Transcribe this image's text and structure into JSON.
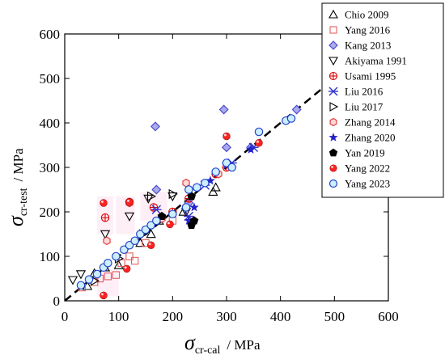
{
  "chart_data": {
    "type": "scatter",
    "xlabel": {
      "symbol": "σ",
      "subscript": "cr-cal",
      "unit": "/ MPa"
    },
    "ylabel": {
      "symbol": "σ",
      "subscript": "cr-test",
      "unit": "/ MPa"
    },
    "xlim": [
      0,
      600
    ],
    "ylim": [
      0,
      600
    ],
    "xticks": [
      0,
      100,
      200,
      300,
      400,
      500,
      600
    ],
    "yticks": [
      0,
      100,
      200,
      300,
      400,
      500,
      600
    ],
    "reference_line": {
      "from": [
        0,
        0
      ],
      "to": [
        600,
        600
      ],
      "style": "dashed"
    },
    "legend_position": "top-right",
    "series": [
      {
        "name": "Chio 2009",
        "marker": "triangle-up",
        "color": "#000000",
        "fill": "none",
        "points": [
          [
            42,
            33
          ],
          [
            55,
            62
          ],
          [
            75,
            75
          ],
          [
            100,
            80
          ],
          [
            140,
            130
          ],
          [
            160,
            150
          ],
          [
            175,
            180
          ],
          [
            220,
            200
          ],
          [
            275,
            245
          ],
          [
            280,
            255
          ]
        ]
      },
      {
        "name": "Yang 2016",
        "marker": "square",
        "color": "#e06060",
        "fill": "none",
        "points": [
          [
            32,
            30
          ],
          [
            55,
            42
          ],
          [
            65,
            50
          ],
          [
            80,
            55
          ],
          [
            95,
            58
          ],
          [
            105,
            85
          ],
          [
            120,
            100
          ],
          [
            130,
            90
          ],
          [
            150,
            130
          ],
          [
            200,
            180
          ]
        ]
      },
      {
        "name": "Kang 2013",
        "marker": "diamond",
        "color": "#4444cc",
        "fill": "#aaaaee",
        "points": [
          [
            168,
            392
          ],
          [
            295,
            430
          ],
          [
            170,
            250
          ],
          [
            230,
            220
          ],
          [
            300,
            345
          ],
          [
            430,
            430
          ],
          [
            345,
            345
          ]
        ]
      },
      {
        "name": "Akiyama 1991",
        "marker": "triangle-down",
        "color": "#000000",
        "fill": "none",
        "points": [
          [
            15,
            47
          ],
          [
            30,
            60
          ],
          [
            75,
            150
          ],
          [
            120,
            190
          ],
          [
            155,
            230
          ],
          [
            200,
            235
          ],
          [
            225,
            200
          ]
        ]
      },
      {
        "name": "Usami 1995",
        "marker": "circle-cross",
        "color": "#dd0000",
        "fill": "none",
        "points": [
          [
            75,
            187
          ],
          [
            120,
            222
          ],
          [
            165,
            210
          ],
          [
            200,
            200
          ],
          [
            230,
            230
          ],
          [
            280,
            285
          ],
          [
            300,
            300
          ]
        ]
      },
      {
        "name": "Liu 2016",
        "marker": "x-line",
        "color": "#3333cc",
        "fill": "none",
        "points": [
          [
            170,
            205
          ],
          [
            230,
            190
          ],
          [
            260,
            260
          ],
          [
            310,
            310
          ],
          [
            350,
            345
          ]
        ]
      },
      {
        "name": "Liu 2017",
        "marker": "triangle-right",
        "color": "#000000",
        "fill": "none",
        "points": [
          [
            55,
            45
          ],
          [
            100,
            95
          ],
          [
            145,
            150
          ],
          [
            160,
            235
          ],
          [
            200,
            240
          ]
        ]
      },
      {
        "name": "Zhang 2014",
        "marker": "hexagon",
        "color": "#dd3333",
        "fill": "#ffd8d8",
        "points": [
          [
            78,
            135
          ],
          [
            120,
            220
          ],
          [
            180,
            185
          ],
          [
            225,
            265
          ],
          [
            285,
            285
          ]
        ]
      },
      {
        "name": "Zhang 2020",
        "marker": "star",
        "color": "#2222cc",
        "fill": "#2222cc",
        "points": [
          [
            230,
            180
          ],
          [
            240,
            210
          ],
          [
            270,
            270
          ],
          [
            300,
            305
          ],
          [
            345,
            340
          ]
        ]
      },
      {
        "name": "Yan 2019",
        "marker": "pentagon",
        "color": "#000000",
        "fill": "#000000",
        "points": [
          [
            235,
            170
          ],
          [
            240,
            180
          ],
          [
            235,
            235
          ],
          [
            180,
            190
          ]
        ]
      },
      {
        "name": "Yang 2022",
        "marker": "sphere",
        "color": "#dd0000",
        "fill": "#ff2222",
        "points": [
          [
            72,
            12
          ],
          [
            72,
            220
          ],
          [
            115,
            72
          ],
          [
            120,
            222
          ],
          [
            160,
            125
          ],
          [
            195,
            172
          ],
          [
            300,
            370
          ],
          [
            360,
            355
          ]
        ]
      },
      {
        "name": "Yang 2023",
        "marker": "circle",
        "color": "#2244cc",
        "fill": "#cceeff",
        "points": [
          [
            30,
            35
          ],
          [
            45,
            48
          ],
          [
            60,
            60
          ],
          [
            72,
            75
          ],
          [
            80,
            85
          ],
          [
            95,
            100
          ],
          [
            110,
            115
          ],
          [
            120,
            125
          ],
          [
            130,
            135
          ],
          [
            140,
            150
          ],
          [
            150,
            160
          ],
          [
            160,
            170
          ],
          [
            170,
            180
          ],
          [
            200,
            195
          ],
          [
            225,
            210
          ],
          [
            230,
            250
          ],
          [
            245,
            255
          ],
          [
            260,
            265
          ],
          [
            280,
            290
          ],
          [
            300,
            310
          ],
          [
            310,
            300
          ],
          [
            360,
            380
          ],
          [
            410,
            405
          ],
          [
            420,
            410
          ]
        ]
      }
    ]
  }
}
